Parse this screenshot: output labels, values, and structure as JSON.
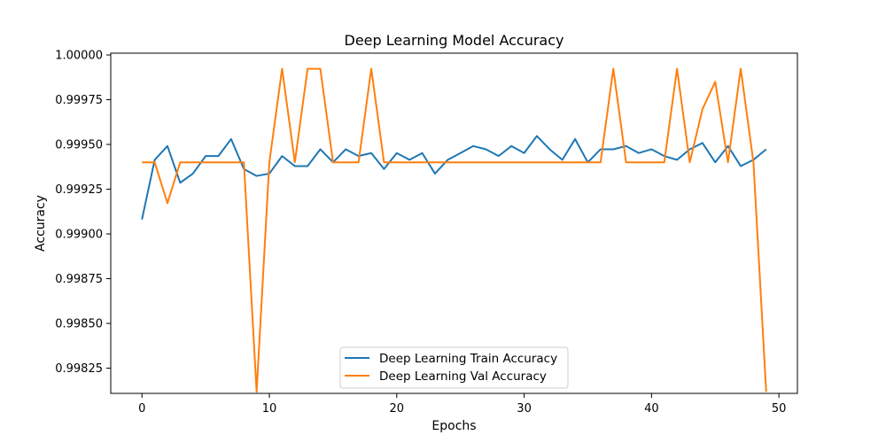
{
  "chart_data": {
    "type": "line",
    "title": "Deep Learning Model Accuracy",
    "xlabel": "Epochs",
    "ylabel": "Accuracy",
    "xlim": [
      -2.45,
      51.45
    ],
    "ylim": [
      0.998109,
      1.00001
    ],
    "x_ticks": [
      0,
      10,
      20,
      30,
      40,
      50
    ],
    "y_ticks": [
      0.99825,
      0.9985,
      0.99875,
      0.999,
      0.99925,
      0.9995,
      0.99975,
      1.0
    ],
    "y_tick_labels": [
      "0.99825",
      "0.99850",
      "0.99875",
      "0.99900",
      "0.99925",
      "0.99950",
      "0.99975",
      "1.00000"
    ],
    "grid": false,
    "legend_position": "lower center",
    "x": [
      0,
      1,
      2,
      3,
      4,
      5,
      6,
      7,
      8,
      9,
      10,
      11,
      12,
      13,
      14,
      15,
      16,
      17,
      18,
      19,
      20,
      21,
      22,
      23,
      24,
      25,
      26,
      27,
      28,
      29,
      30,
      31,
      32,
      33,
      34,
      35,
      36,
      37,
      38,
      39,
      40,
      41,
      42,
      43,
      44,
      45,
      46,
      47,
      48,
      49
    ],
    "series": [
      {
        "name": "Deep Learning Train Accuracy",
        "color": "#1f77b4",
        "values": [
          0.999081,
          0.999414,
          0.999491,
          0.999286,
          0.999337,
          0.999435,
          0.999435,
          0.99953,
          0.999363,
          0.999324,
          0.999337,
          0.999435,
          0.999379,
          0.999379,
          0.999473,
          0.9994,
          0.999473,
          0.999435,
          0.999452,
          0.999363,
          0.999452,
          0.999414,
          0.999452,
          0.999337,
          0.999414,
          0.999452,
          0.999491,
          0.999473,
          0.999435,
          0.999491,
          0.999452,
          0.999547,
          0.999473,
          0.999414,
          0.99953,
          0.9994,
          0.999473,
          0.999473,
          0.999491,
          0.999452,
          0.999473,
          0.999435,
          0.999414,
          0.999473,
          0.999508,
          0.9994,
          0.999491,
          0.999379,
          0.999414,
          0.999473
        ]
      },
      {
        "name": "Deep Learning Val Accuracy",
        "color": "#ff7f0e",
        "values": [
          0.9994,
          0.9994,
          0.999172,
          0.9994,
          0.9994,
          0.9994,
          0.9994,
          0.9994,
          0.9994,
          0.998118,
          0.9994,
          0.999923,
          0.9994,
          0.999923,
          0.999923,
          0.9994,
          0.9994,
          0.9994,
          0.999923,
          0.9994,
          0.9994,
          0.9994,
          0.9994,
          0.9994,
          0.9994,
          0.9994,
          0.9994,
          0.9994,
          0.9994,
          0.9994,
          0.9994,
          0.9994,
          0.9994,
          0.9994,
          0.9994,
          0.9994,
          0.9994,
          0.999923,
          0.9994,
          0.9994,
          0.9994,
          0.9994,
          0.999923,
          0.9994,
          0.999697,
          0.99985,
          0.9994,
          0.999923,
          0.9994,
          0.998118
        ]
      }
    ]
  }
}
